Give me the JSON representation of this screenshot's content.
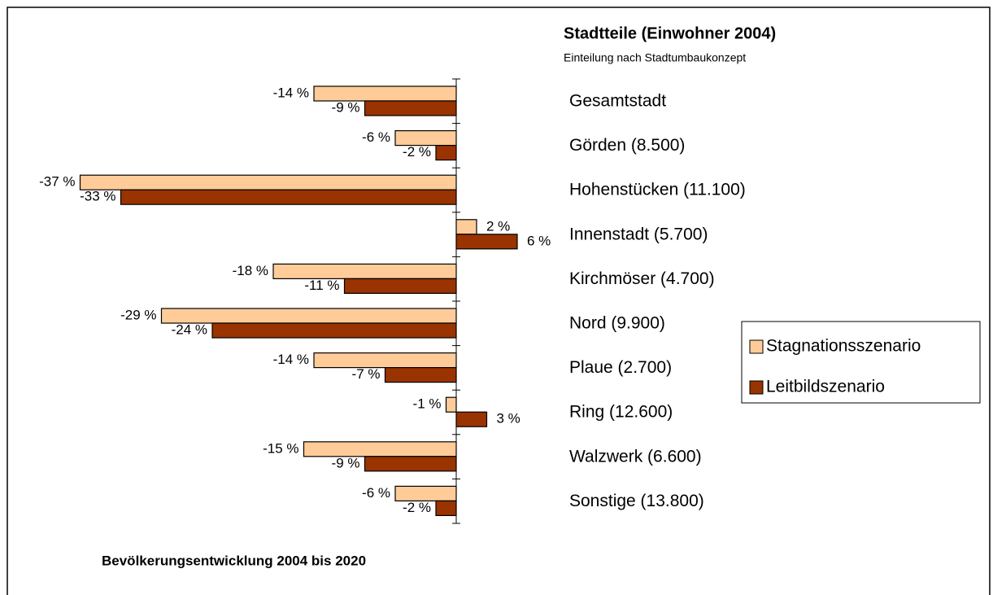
{
  "chart_data": {
    "type": "bar",
    "orientation": "horizontal",
    "title": "Stadtteile (Einwohner 2004)",
    "subtitle": "Einteilung nach Stadtumbaukonzept",
    "annotation": "Bevölkerungsentwicklung 2004 bis 2020",
    "categories": [
      "Gesamtstadt",
      "Görden (8.500)",
      "Hohenstücken (11.100)",
      "Innenstadt (5.700)",
      "Kirchmöser (4.700)",
      "Nord (9.900)",
      "Plaue (2.700)",
      "Ring (12.600)",
      "Walzwerk (6.600)",
      "Sonstige (13.800)"
    ],
    "series": [
      {
        "name": "Stagnationsszenario",
        "color": "#ffcc99",
        "values": [
          -14,
          -6,
          -37,
          2,
          -18,
          -29,
          -14,
          -1,
          -15,
          -6
        ],
        "value_labels": [
          "-14 %",
          "-6 %",
          "-37 %",
          "2 %",
          "-18 %",
          "-29 %",
          "-14 %",
          "-1 %",
          "-15 %",
          "-6 %"
        ]
      },
      {
        "name": "Leitbildszenario",
        "color": "#993300",
        "values": [
          -9,
          -2,
          -33,
          6,
          -11,
          -24,
          -7,
          3,
          -9,
          -2
        ],
        "value_labels": [
          "-9 %",
          "-2 %",
          "-33 %",
          "6 %",
          "-11 %",
          "-24 %",
          "-7 %",
          "3 %",
          "-9 %",
          "-2 %"
        ]
      }
    ],
    "xlim": [
      -38,
      8
    ],
    "legend": "right"
  }
}
